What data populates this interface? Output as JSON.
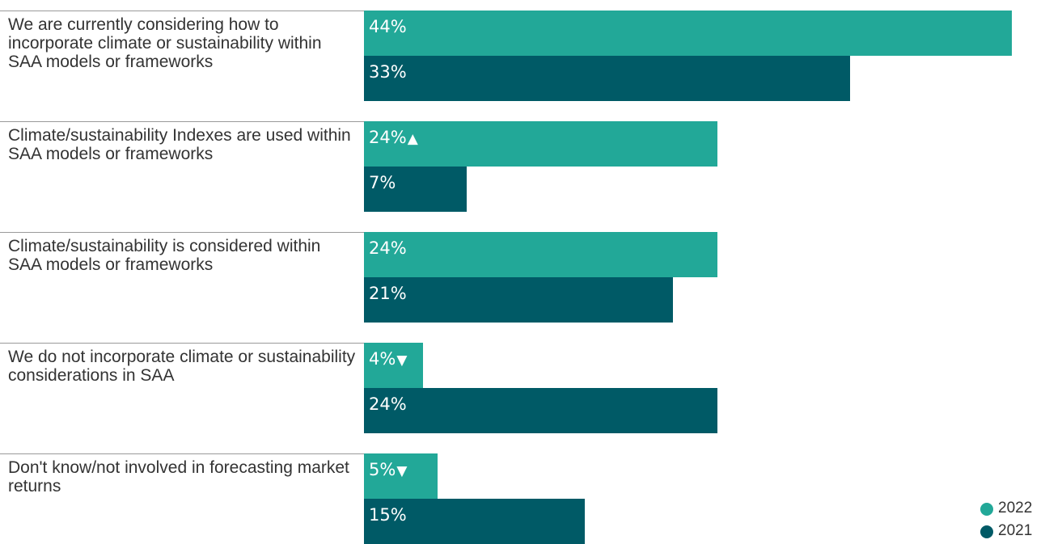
{
  "chart_data": {
    "type": "bar",
    "orientation": "horizontal",
    "categories": [
      "We are currently considering how to incorporate climate or sustainability within SAA models or frameworks",
      "Climate/sustainability Indexes are used within SAA models or frameworks",
      "Climate/sustainability is considered within SAA models or frameworks",
      "We do not incorporate climate or sustainability considerations in SAA",
      "Don't know/not involved in forecasting market returns"
    ],
    "series": [
      {
        "name": "2022",
        "color": "#22a898",
        "values": [
          44,
          24,
          24,
          4,
          5
        ],
        "labels": [
          "44%",
          "24%",
          "24%",
          "4%",
          "5%"
        ],
        "markers": [
          "",
          "▲",
          "",
          "▼",
          "▼"
        ]
      },
      {
        "name": "2021",
        "color": "#005a66",
        "values": [
          33,
          7,
          21,
          24,
          15
        ],
        "labels": [
          "33%",
          "7%",
          "21%",
          "24%",
          "15%"
        ],
        "markers": [
          "",
          "",
          "",
          "",
          ""
        ]
      }
    ],
    "xlim": [
      0,
      44
    ],
    "grid": false,
    "legend_position": "bottom-right"
  }
}
